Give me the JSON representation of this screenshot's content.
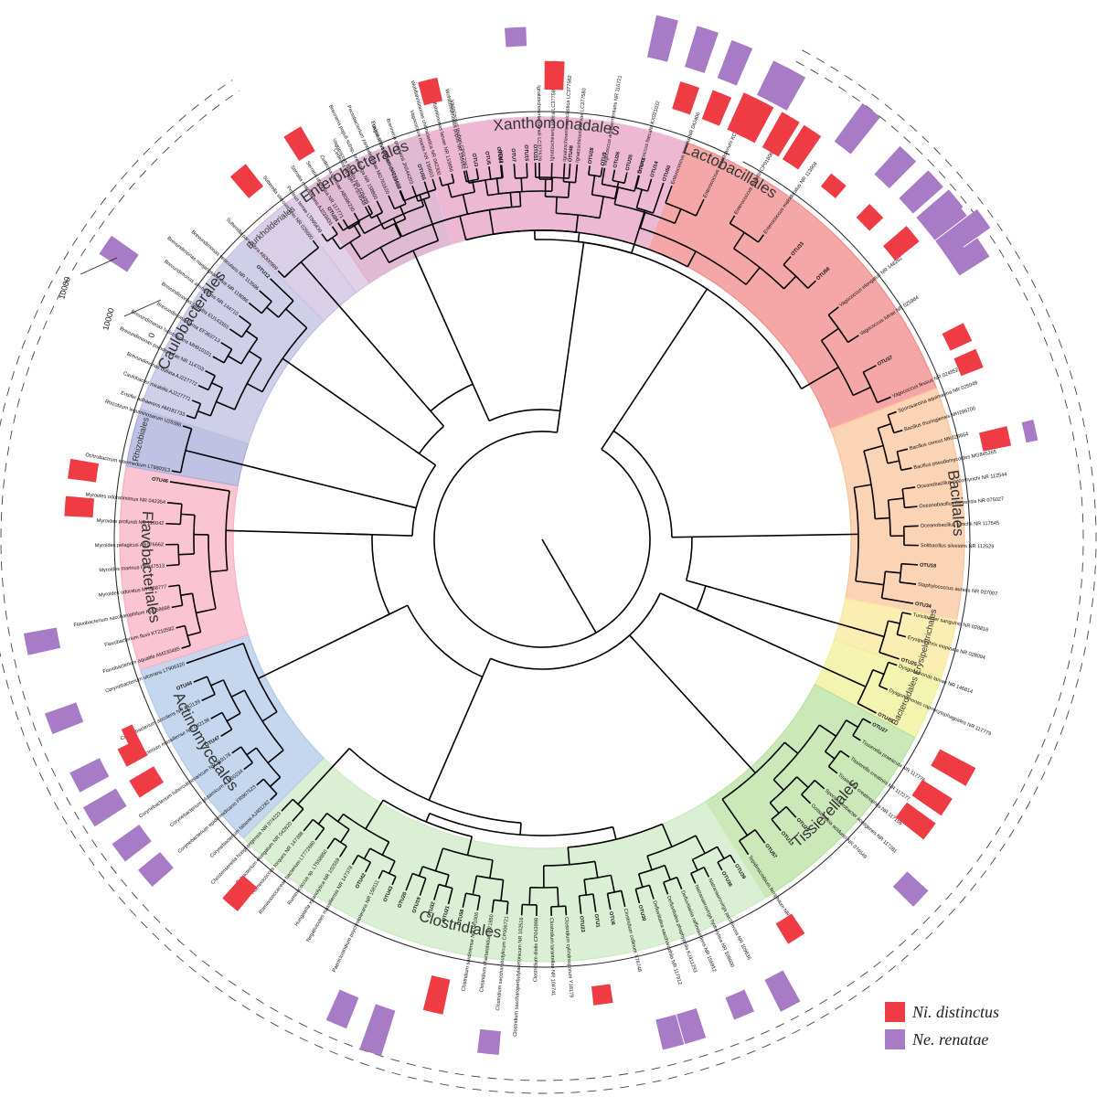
{
  "colors": {
    "ni": "#ee3b44",
    "ne": "#a77bc5"
  },
  "legend": [
    {
      "label": "Ni. distinctus",
      "color": "#ee3b44"
    },
    {
      "label": "Ne. renatae",
      "color": "#a77bc5"
    }
  ],
  "scale": {
    "labels": [
      "10000",
      "10000",
      "0"
    ]
  },
  "clades": [
    {
      "id": "lacto",
      "name": "Lactobacillales",
      "color": "#f28a8a",
      "start": 236,
      "end": 339,
      "labelAngle": 297
    },
    {
      "id": "bacil",
      "name": "Bacillales",
      "color": "#f9c49c",
      "start": 339,
      "end": 371,
      "labelAngle": 355
    },
    {
      "id": "erysi",
      "name": "Erysipelotrichales",
      "color": "#fbe79a",
      "start": 371,
      "end": 379,
      "labelAngle": 375,
      "small": true
    },
    {
      "id": "bactd",
      "name": "Bacteroidales",
      "color": "#eef096",
      "start": 379,
      "end": 388,
      "labelAngle": 384,
      "small": true
    },
    {
      "id": "tissi",
      "name": "Tissierellales",
      "color": "#b9e0a2",
      "start": 388,
      "end": 418,
      "labelAngle": 404
    },
    {
      "id": "clost",
      "name": "Clostridiales",
      "color": "#cde9c4",
      "start": 418,
      "end": 495,
      "labelAngle": 462
    },
    {
      "id": "actin",
      "name": "Actinomycetales",
      "color": "#b2c9e8",
      "start": 495,
      "end": 522,
      "labelAngle": 509
    },
    {
      "id": "flavo",
      "name": "Flavobacteriales",
      "color": "#f9b0c4",
      "start": 522,
      "end": 550,
      "labelAngle": 536
    },
    {
      "id": "rhizo",
      "name": "Rhizobiales",
      "color": "#aaaed8",
      "start": 550,
      "end": 558,
      "labelAngle": 554,
      "small": true
    },
    {
      "id": "caulo",
      "name": "Caulobacterales",
      "color": "#bfbfe2",
      "start": 558,
      "end": 585,
      "labelAngle": 572
    },
    {
      "id": "burkh",
      "name": "Burkholderiales",
      "color": "#cdbfe0",
      "start": 585,
      "end": 593,
      "labelAngle": 589,
      "small": true
    },
    {
      "id": "entero",
      "name": "Enterobacterales",
      "color": "#d8bfe0",
      "start": 593,
      "end": 613,
      "labelAngle": 603
    },
    {
      "id": "xantho",
      "name": "Xanthomonadales",
      "color": "#eabfe0",
      "start": 613,
      "end": 650,
      "labelAngle": 632
    }
  ],
  "leaves": {
    "lacto": [
      "OTU24",
      "Vagococcus fluvialis NR 026489",
      "Vagococcus penaei CP019609",
      "Vagococcus martis NR 156803",
      "Vagococcus teuberi CP017267",
      "OTU54",
      "OTU31",
      "OTU48",
      "Vagococcus acidifermentans NR 116721",
      "Enterococcus faecalis KX021032",
      "Enterococcus termitis NR 042406",
      "Enterococcus pseudoavium KC510265",
      "Enterococcus mundtii CP018061",
      "Enterococcus malodoratus NR 113904",
      "OTU33",
      "OTU56",
      "Vagococcus elongatus NR 148262",
      "Vagococcus lutrae NR 025984",
      "OTU37",
      "Vagococcus fessus NR 024852"
    ],
    "bacil": [
      "Sporosarcina aquimarina NR 025049",
      "Bacillus thuringiensis MH299700",
      "Bacillus cereus MK028664",
      "Bacillus pseudomycoides MG845265",
      "Oceanobacillus oncorhynchi NR 112544",
      "Oceanobacillus iheyensis NR 075027",
      "Oceanobacillus kimchii NR 117545",
      "Solibacillus silvestris NR 112529",
      "OTU18",
      "Staphylococcus aureus NR 037007",
      "OTU34"
    ],
    "erysi": [
      "Turicibacter sanguinis NR 028816",
      "Erysipelothrix inopinata NR 028094",
      "OTU25"
    ],
    "bactd": [
      "Dysgonomonas larvae NR 146814",
      "Dysgonomonas capnocytophagoides NR 117779",
      "OTU49"
    ],
    "tissi": [
      "OTU27",
      "Tissierella praeacuta NR 117776",
      "Tissierella creatinini NR 117277",
      "Tissierella creatinophila NR 117155",
      "Sporanaerobacter acetigenes NR 117281",
      "Gottschalkia acidurici NR 074549",
      "OTU29",
      "OTU13",
      "OTU57",
      "Tepidimicrobium ferriphilum NR 147394"
    ],
    "clost": [
      "OTU39",
      "OTU36",
      "Natranaerovirga pectinivora NR 109636",
      "Natranaerovirga hydrolytica NR 108600",
      "Defluviitalea raffinosedens NR 156912",
      "Defluviitalea phaphyphila KJ411293",
      "Defluviitalea saccharophila NR 117912",
      "OTU30",
      "Clostridium collinum X76748",
      "OTU6",
      "OTU1",
      "OTU23",
      "Clostridium cylindrosporum Y18179",
      "Clostridium tarantellae NR 104741",
      "Clostridium diolis CP043998",
      "Clostridium saccharoperbutylacetonicum NR 102516",
      "Clostridium saccharobutylicum CP006721",
      "Clostridium chartatabidum X71850",
      "Clostridium sardiniense NR 041006",
      "OTU58",
      "OTU21",
      "OTU32",
      "OTU19",
      "OTU20",
      "OTU43",
      "Paeniclostridium psychrotolerans NR 158111",
      "OTU42",
      "Negativicutes massiliensis NR 147378",
      "Hungatella xylanolytica NR 102559",
      "Ruminococcus sp. LT558850",
      "Ruminococcaceae bacterium LT772660",
      "Ruminococcus torques NR 147398",
      "Eubacterium elongatum NR 042820",
      "Christensenella hongkongensis NR 074323"
    ],
    "actin": [
      "Corynebacterium falsenii AJ401282",
      "Corynebacterium epidermidicanis FR867623",
      "Corynebacterium glutamicum AJ420234",
      "Corynebacterium tuberculostearicum NR 119178",
      "OTU47",
      "Corynebacterium massiliense NR 042138",
      "Corynebacterium accolens NR 042139",
      "OTU44",
      "Corynebacterium ulcerans LT906320"
    ],
    "flavo": [
      "Flavobacterium aquatile AM230485",
      "Flavobacterium fluvii KT210592",
      "Flavobacterium saccharophilum KU058698",
      "Myroides odoratus MH368777",
      "Myroides marinus HF947513",
      "Myroides pelagicus AB176662",
      "Myroides profundi NR 116042",
      "Myroides odoratimimus NR 042354",
      "OTU46"
    ],
    "rhizo": [
      "Ochrobactrum intermedium LT880313",
      "Rhizobium leguminosarum U29386"
    ],
    "caulo": [
      "Ensifer adhaerens AM181733",
      "Caulobacter mirabilis AJ227771",
      "Brevundimonas bullata AJ227772",
      "Brevundimonas poindexterae NR 114703",
      "Brevundimonas halotolerans MH910101",
      "Brevundimonas lenta EF363713",
      "Brevundimonas basaltis EU143355",
      "Brevundimonas aveniformis NR 144710",
      "Brevundimonas naejangsanensis NR 118086",
      "Brevundimonas vesicularis NR 113586",
      "OTU12"
    ],
    "burkh": [
      "Sutterella parvirubra AB300989",
      "Sutterella stercoricanis NR 025600"
    ],
    "entero": [
      "Proteus terrae LT895839",
      "Serratia marcescens AJ233431",
      "Serratia ureilytica NR 117771",
      "Cedecea davisae AB086230",
      "Cedecea lapagei KY979548",
      "Brenneria populi subsp. brevivirga NR 158800",
      "Pectobacterium zantedeschiae MG761620",
      "Erwinia chrysanthemi AJ233412",
      "Brenneria goodwinii JN544203",
      "OTU55"
    ],
    "xantho": [
      "Wohlfahrtiimonas chitiniclastica NR 042300",
      "Wohlfahrtiimonas larvae NR 133856",
      "Wohlfahrtiimonas populi NR 159162",
      "OTU3",
      "OTU5",
      "OTU2",
      "OTU7",
      "OTU15",
      "Ignatzschineria cameli LC377579",
      "Ignatzschineria indica LC377581",
      "Ignatzschineria ureiclastica LC377582",
      "Ignatzschineria larvae LC377580",
      "OTU28",
      "OTU9",
      "OTU26",
      "OTU25",
      "OTU41",
      "OTU14",
      "OTU50"
    ]
  },
  "bars": [
    {
      "a": 283.5,
      "ni": 0,
      "ne": 18
    },
    {
      "a": 288,
      "ni": 12,
      "ne": 0
    },
    {
      "a": 292,
      "ni": 13,
      "ne": 17
    },
    {
      "a": 295.5,
      "ni": 17,
      "ne": 0
    },
    {
      "a": 298.5,
      "ni": 0,
      "ne": 16
    },
    {
      "a": 303.5,
      "ni": 17,
      "ne": 0
    },
    {
      "a": 309.5,
      "ni": 7,
      "ne": 0
    },
    {
      "a": 315.5,
      "ni": 8,
      "ne": 0
    },
    {
      "a": 320.5,
      "ni": 13,
      "ne": 18
    },
    {
      "a": 324,
      "ni": 0,
      "ne": 22
    },
    {
      "a": 325.5,
      "ni": 0,
      "ne": 8
    },
    {
      "a": 347.5,
      "ni": 12,
      "ne": 5
    },
    {
      "a": 389,
      "ni": 17,
      "ne": 0
    },
    {
      "a": 393.5,
      "ni": 15,
      "ne": 0
    },
    {
      "a": 397,
      "ni": 15,
      "ne": 0
    },
    {
      "a": 403.5,
      "ni": 0,
      "ne": 12
    },
    {
      "a": 417.5,
      "ni": 10,
      "ne": 0
    },
    {
      "a": 422,
      "ni": 0,
      "ne": 15
    },
    {
      "a": 427,
      "ni": 0,
      "ne": 10
    },
    {
      "a": 433,
      "ni": 0,
      "ne": 13
    },
    {
      "a": 435.5,
      "ni": 0,
      "ne": 13
    },
    {
      "a": 442.5,
      "ni": 8,
      "ne": 0
    },
    {
      "a": 456,
      "ni": 0,
      "ne": 10
    },
    {
      "a": 463,
      "ni": 15,
      "ne": 0
    },
    {
      "a": 468.5,
      "ni": 0,
      "ne": 20
    },
    {
      "a": 473,
      "ni": 0,
      "ne": 14
    },
    {
      "a": 490.5,
      "ni": 13,
      "ne": 0
    },
    {
      "a": 499.5,
      "ni": 0,
      "ne": 12
    },
    {
      "a": 503.5,
      "ni": 0,
      "ne": 14
    },
    {
      "a": 508.5,
      "ni": 12,
      "ne": 16
    },
    {
      "a": 512.5,
      "ni": 10,
      "ne": 14
    },
    {
      "a": 514.5,
      "ni": 5,
      "ne": 0
    },
    {
      "a": 519.5,
      "ni": 0,
      "ne": 14
    },
    {
      "a": 528.5,
      "ni": 0,
      "ne": 14
    },
    {
      "a": 544,
      "ni": 12,
      "ne": 0
    },
    {
      "a": 548.5,
      "ni": 12,
      "ne": 0
    },
    {
      "a": 574,
      "ni": 0,
      "ne": 14
    },
    {
      "a": 590.5,
      "ni": 12,
      "ne": 0
    },
    {
      "a": 598.5,
      "ni": 12,
      "ne": 0
    },
    {
      "a": 616,
      "ni": 10,
      "ne": 0
    },
    {
      "a": 627,
      "ni": 0,
      "ne": 8
    },
    {
      "a": 631.5,
      "ni": 12,
      "ne": 0
    },
    {
      "a": 643.5,
      "ni": 0,
      "ne": 10
    },
    {
      "a": 648,
      "ni": 0,
      "ne": 18
    },
    {
      "a": 657,
      "ni": 17,
      "ne": 16
    },
    {
      "a": 660.5,
      "ni": 17,
      "ne": 0
    },
    {
      "a": 667.5,
      "ni": 0,
      "ne": 20
    },
    {
      "a": 673.5,
      "ni": 0,
      "ne": 16
    },
    {
      "a": 677.5,
      "ni": 0,
      "ne": 17
    },
    {
      "a": 681.5,
      "ni": 0,
      "ne": 17
    },
    {
      "a": 686.5,
      "ni": 0,
      "ne": 15
    },
    {
      "a": 694,
      "ni": 10,
      "ne": 0
    },
    {
      "a": 697.5,
      "ni": 10,
      "ne": 0
    }
  ]
}
